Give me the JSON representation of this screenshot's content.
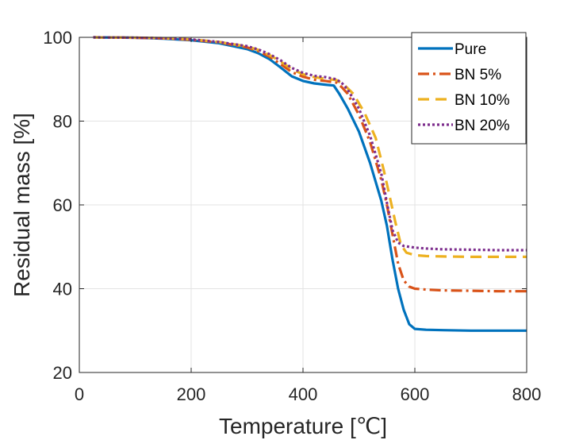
{
  "chart_data": {
    "type": "line",
    "xlabel": "Temperature [℃]",
    "ylabel": "Residual mass [%]",
    "xlim": [
      0,
      800
    ],
    "ylim": [
      20,
      100
    ],
    "xticks": [
      0,
      200,
      400,
      600,
      800
    ],
    "yticks": [
      20,
      40,
      60,
      80,
      100
    ],
    "grid": true,
    "legend_position": "top-right",
    "series": [
      {
        "name": "Pure",
        "color": "#0072BD",
        "line_style": "solid",
        "x": [
          25,
          100,
          150,
          200,
          250,
          300,
          320,
          340,
          360,
          380,
          400,
          420,
          440,
          455,
          465,
          480,
          500,
          520,
          540,
          550,
          560,
          570,
          580,
          590,
          600,
          620,
          650,
          700,
          750,
          800
        ],
        "y": [
          100,
          99.9,
          99.7,
          99.3,
          98.6,
          97.2,
          96.2,
          94.8,
          92.8,
          90.7,
          89.6,
          89.0,
          88.7,
          88.5,
          86.5,
          83.0,
          77.5,
          70.0,
          61.0,
          55.0,
          47.0,
          40.0,
          35.0,
          31.5,
          30.4,
          30.2,
          30.1,
          30.0,
          30.0,
          30.0
        ]
      },
      {
        "name": "BN 5%",
        "color": "#D95319",
        "line_style": "dashdot",
        "x": [
          25,
          100,
          150,
          200,
          250,
          300,
          320,
          340,
          360,
          380,
          400,
          420,
          440,
          460,
          470,
          480,
          500,
          520,
          540,
          550,
          560,
          570,
          580,
          590,
          600,
          620,
          650,
          700,
          750,
          800
        ],
        "y": [
          100,
          99.9,
          99.8,
          99.4,
          98.8,
          97.6,
          96.7,
          95.4,
          93.6,
          91.7,
          90.6,
          89.9,
          89.6,
          89.2,
          88.0,
          86.5,
          81.5,
          75.0,
          66.0,
          60.0,
          53.0,
          46.0,
          42.0,
          40.5,
          40.0,
          39.8,
          39.6,
          39.5,
          39.4,
          39.4
        ]
      },
      {
        "name": "BN 10%",
        "color": "#EDB120",
        "line_style": "dashed",
        "x": [
          25,
          100,
          150,
          200,
          250,
          300,
          320,
          340,
          360,
          380,
          400,
          420,
          440,
          460,
          475,
          490,
          510,
          530,
          545,
          555,
          565,
          575,
          585,
          600,
          620,
          650,
          700,
          750,
          800
        ],
        "y": [
          100,
          99.9,
          99.8,
          99.5,
          98.9,
          97.8,
          97.0,
          95.8,
          94.2,
          92.4,
          91.2,
          90.5,
          90.1,
          89.8,
          88.5,
          86.5,
          82.0,
          76.0,
          68.0,
          62.0,
          56.0,
          50.5,
          48.6,
          48.0,
          47.8,
          47.7,
          47.6,
          47.6,
          47.6
        ]
      },
      {
        "name": "BN 20%",
        "color": "#7E2F8E",
        "line_style": "dotted",
        "x": [
          25,
          100,
          150,
          200,
          250,
          300,
          320,
          340,
          360,
          380,
          400,
          420,
          440,
          460,
          470,
          480,
          500,
          520,
          540,
          550,
          560,
          570,
          580,
          600,
          620,
          650,
          700,
          750,
          800
        ],
        "y": [
          100,
          99.9,
          99.8,
          99.5,
          98.9,
          97.9,
          97.1,
          96.0,
          94.5,
          92.7,
          91.5,
          90.8,
          90.5,
          90.0,
          89.0,
          87.5,
          83.0,
          76.5,
          67.5,
          60.5,
          54.0,
          51.0,
          50.2,
          49.8,
          49.6,
          49.4,
          49.3,
          49.2,
          49.2
        ]
      }
    ]
  }
}
